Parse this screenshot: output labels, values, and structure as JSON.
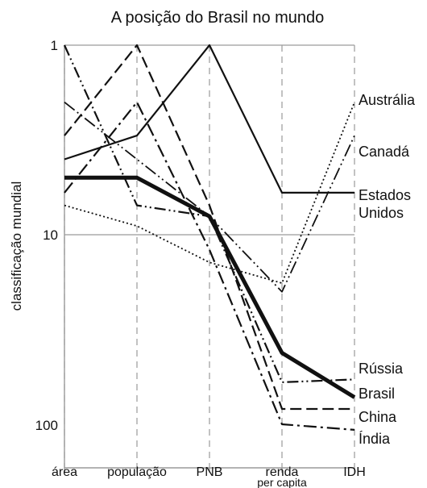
{
  "chart_data": {
    "type": "line",
    "title": "A posição do Brasil no mundo",
    "xlabel": "",
    "ylabel": "classificação mundial",
    "y_scale": "log",
    "y_inverted": true,
    "ylim": [
      1,
      100
    ],
    "y_ticks": [
      "1",
      "10",
      "100"
    ],
    "categories": [
      "área",
      "população",
      "PNB",
      "renda per capita",
      "IDH"
    ],
    "category_lines": [
      [
        "área"
      ],
      [
        "população"
      ],
      [
        "PNB"
      ],
      [
        "renda",
        "per capita"
      ],
      [
        "IDH"
      ]
    ],
    "grid": true,
    "series": [
      {
        "name": "Austrália",
        "label_lines": [
          "Austrália"
        ],
        "dash": "2 3",
        "width": 1.8,
        "values": [
          7,
          9,
          14,
          18,
          2
        ]
      },
      {
        "name": "Canadá",
        "label_lines": [
          "Canadá"
        ],
        "dash": "16 4 2 4 2 4",
        "width": 1.8,
        "values": [
          2,
          4,
          8,
          20,
          3
        ]
      },
      {
        "name": "Estados Unidos",
        "label_lines": [
          "Estados",
          "Unidos"
        ],
        "dash": "",
        "width": 2.2,
        "values": [
          4,
          3,
          1,
          6,
          6
        ]
      },
      {
        "name": "Rússia",
        "label_lines": [
          "Rússia"
        ],
        "dash": "14 4 2 4 2 4",
        "width": 2.2,
        "values": [
          1,
          7,
          8,
          60,
          58
        ]
      },
      {
        "name": "Brasil",
        "label_lines": [
          "Brasil"
        ],
        "dash": "",
        "width": 5,
        "values": [
          5,
          5,
          8,
          42,
          72
        ]
      },
      {
        "name": "China",
        "label_lines": [
          "China"
        ],
        "dash": "14 6",
        "width": 2.2,
        "values": [
          3,
          1,
          7,
          83,
          83
        ]
      },
      {
        "name": "Índia",
        "label_lines": [
          "Índia"
        ],
        "dash": "16 5 3 5",
        "width": 2.2,
        "values": [
          6,
          2,
          12,
          100,
          107
        ]
      }
    ]
  }
}
